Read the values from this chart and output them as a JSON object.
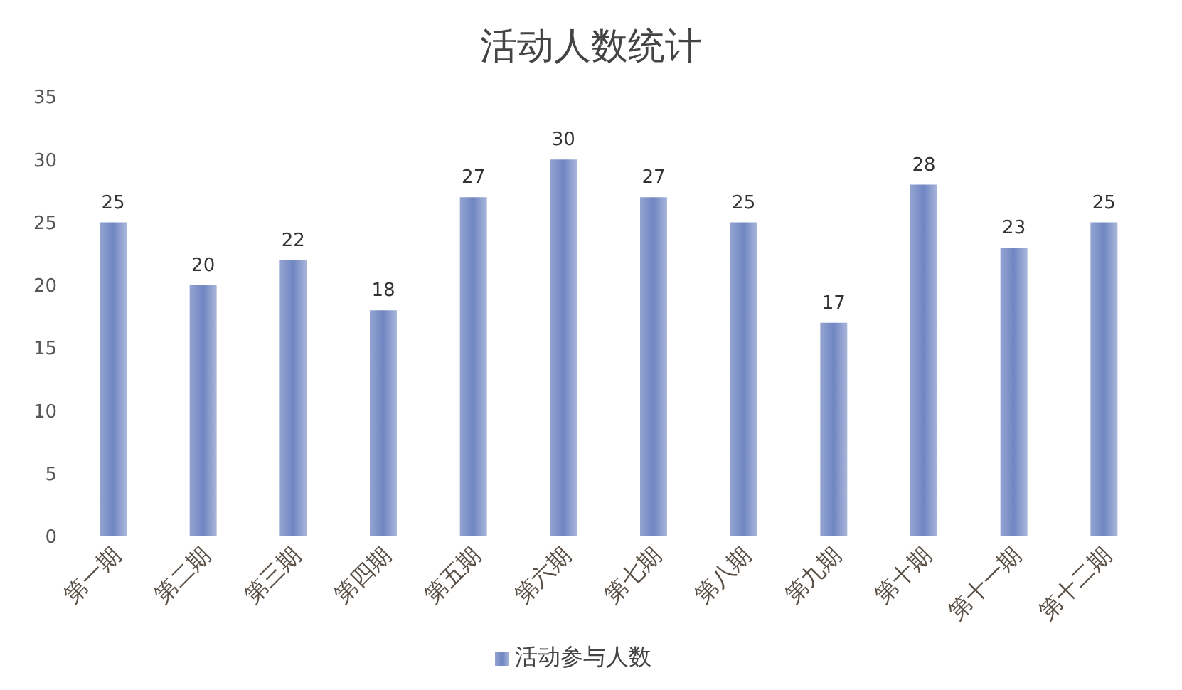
{
  "chart_data": {
    "type": "bar",
    "title": "活动人数统计",
    "categories": [
      "第一期",
      "第二期",
      "第三期",
      "第四期",
      "第五期",
      "第六期",
      "第七期",
      "第八期",
      "第九期",
      "第十期",
      "第十一期",
      "第十二期"
    ],
    "series": [
      {
        "name": "活动参与人数",
        "color": "#7086c2",
        "values": [
          25,
          20,
          22,
          18,
          27,
          30,
          27,
          25,
          17,
          28,
          23,
          25
        ]
      }
    ],
    "ylim": [
      0,
      35
    ],
    "yticks": [
      0,
      5,
      10,
      15,
      20,
      25,
      30,
      35
    ],
    "grid": false,
    "data_labels": true,
    "legend": "bottom"
  }
}
